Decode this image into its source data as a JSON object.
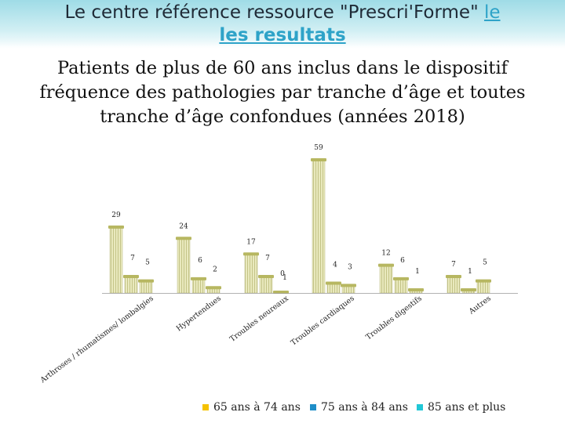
{
  "title": {
    "line1_main": "Le centre référence ressource \"Prescri'Forme\"",
    "line1_tail": "le",
    "line2": "les resultats"
  },
  "subtitle": {
    "line1": "Patients de plus de 60 ans  inclus dans le dispositif",
    "line2": "fréquence des pathologies par tranche d’âge et toutes",
    "line3": "tranche d’âge confondues   (années 2018)"
  },
  "colors": {
    "series_65_74": "#f5c200",
    "series_75_84": "#1e8ec8",
    "series_85_plus": "#21c7d6",
    "bar_fill": "#e4e4b2",
    "bar_stripe": "#c8c88c"
  },
  "chart_data": {
    "type": "bar",
    "categories": [
      "Arthroses / rhumatismes/ lombalgies",
      "Hypertendues",
      "Troubles neureaux",
      "Troubles cardiaques",
      "Troubles digestifs",
      "Autres"
    ],
    "series": [
      {
        "name": "65 ans à 74 ans",
        "values": [
          29,
          24,
          17,
          59,
          12,
          7
        ]
      },
      {
        "name": "75 ans à 84 ans",
        "values": [
          7,
          6,
          7,
          4,
          6,
          1
        ]
      },
      {
        "name": "85 ans et plus",
        "values": [
          5,
          2,
          0,
          3,
          1,
          5
        ]
      }
    ],
    "extra_label": "1",
    "ylim": [
      0,
      60
    ],
    "grid": false,
    "legend_position": "bottom"
  }
}
